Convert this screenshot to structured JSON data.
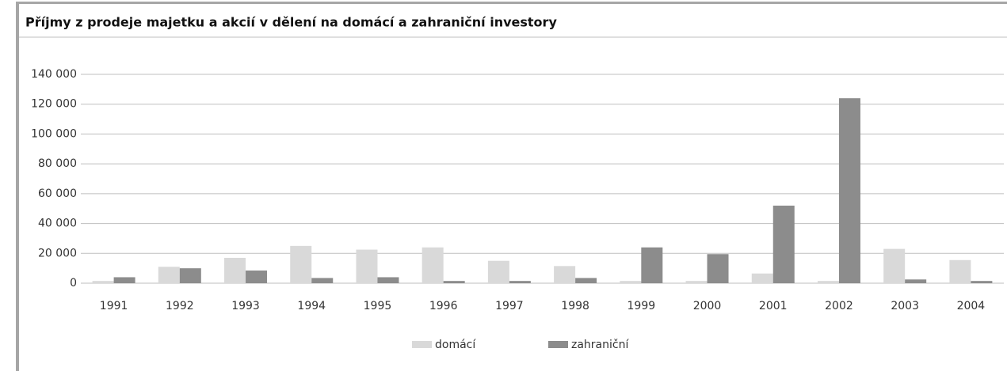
{
  "chart_data": {
    "type": "bar",
    "title": "Příjmy z prodeje majetku a akcií v dělení na domácí a zahraniční investory",
    "categories": [
      "1991",
      "1992",
      "1993",
      "1994",
      "1995",
      "1996",
      "1997",
      "1998",
      "1999",
      "2000",
      "2001",
      "2002",
      "2003",
      "2004"
    ],
    "series": [
      {
        "name": "domácí",
        "color": "#d9d9d9",
        "values": [
          1500,
          11000,
          17000,
          25000,
          22500,
          24000,
          15000,
          11500,
          1500,
          1500,
          6500,
          1500,
          23000,
          15500
        ]
      },
      {
        "name": "zahraniční",
        "color": "#8c8c8c",
        "values": [
          4000,
          10000,
          8500,
          3500,
          4000,
          1500,
          1500,
          3500,
          24000,
          19500,
          52000,
          124000,
          2500,
          1500
        ]
      }
    ],
    "ylim": [
      0,
      140000
    ],
    "yticks": [
      0,
      {
        "value": 20000,
        "label": "20 000"
      },
      {
        "value": 40000,
        "label": "40 000"
      },
      {
        "value": 60000,
        "label": "60 000"
      },
      {
        "value": 80000,
        "label": "80 000"
      },
      {
        "value": 100000,
        "label": "100 000"
      },
      {
        "value": 120000,
        "label": "120 000"
      },
      {
        "value": 140000,
        "label": "140 000"
      }
    ],
    "grid": true,
    "legend": "bottom"
  }
}
